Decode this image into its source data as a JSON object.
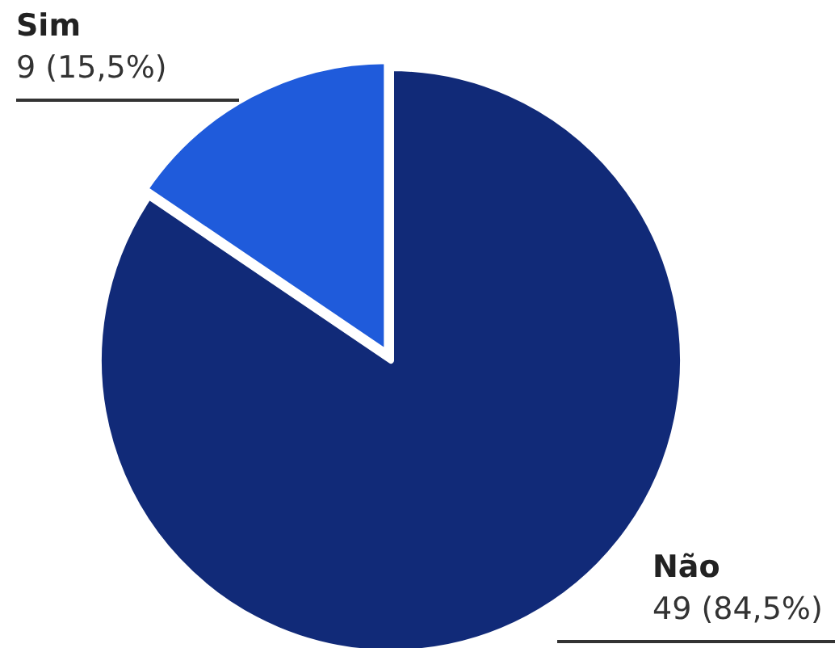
{
  "chart_data": {
    "type": "pie",
    "categories": [
      "Sim",
      "Não"
    ],
    "values": [
      9,
      49
    ],
    "colors": [
      "#1f5bdb",
      "#112a78"
    ],
    "value_labels": [
      "9 (15,5%)",
      "49 (84,5%)"
    ]
  }
}
